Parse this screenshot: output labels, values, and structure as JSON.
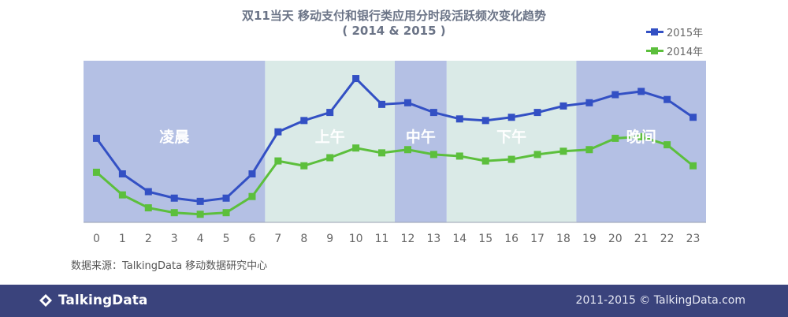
{
  "chart_data": {
    "type": "line",
    "title": "双11当天 移动支付和银行类应用分时段活跃频次变化趋势",
    "subtitle": "( 2014 & 2015 )",
    "x": [
      "0",
      "1",
      "2",
      "3",
      "4",
      "5",
      "6",
      "7",
      "8",
      "9",
      "10",
      "11",
      "12",
      "13",
      "14",
      "15",
      "16",
      "17",
      "18",
      "19",
      "20",
      "21",
      "22",
      "23"
    ],
    "series": [
      {
        "name": "2015年",
        "color": "#3350c4",
        "values": [
          52,
          30,
          19,
          15,
          13,
          15,
          30,
          56,
          63,
          68,
          89,
          73,
          74,
          68,
          64,
          63,
          65,
          68,
          72,
          74,
          79,
          81,
          76,
          65
        ]
      },
      {
        "name": "2014年",
        "color": "#5cbf3c",
        "values": [
          31,
          17,
          9,
          6,
          5,
          6,
          16,
          38,
          35,
          40,
          46,
          43,
          45,
          42,
          41,
          38,
          39,
          42,
          44,
          45,
          52,
          53,
          48,
          35
        ]
      }
    ],
    "ylim": [
      0,
      100
    ],
    "grid": false,
    "legend_position": "top-right",
    "periods": [
      {
        "label": "凌晨",
        "start": -0.5,
        "end": 6.5,
        "color": "#b4c0e4"
      },
      {
        "label": "上午",
        "start": 6.5,
        "end": 11.5,
        "color": "#daeae7"
      },
      {
        "label": "中午",
        "start": 11.5,
        "end": 13.5,
        "color": "#b4c0e4"
      },
      {
        "label": "下午",
        "start": 13.5,
        "end": 18.5,
        "color": "#daeae7"
      },
      {
        "label": "晚间",
        "start": 18.5,
        "end": 23.5,
        "color": "#b4c0e4"
      }
    ]
  },
  "source": "数据来源：TalkingData 移动数据研究中心",
  "footer": {
    "brand": "TalkingData",
    "copyright": "2011-2015 © TalkingData.com"
  }
}
